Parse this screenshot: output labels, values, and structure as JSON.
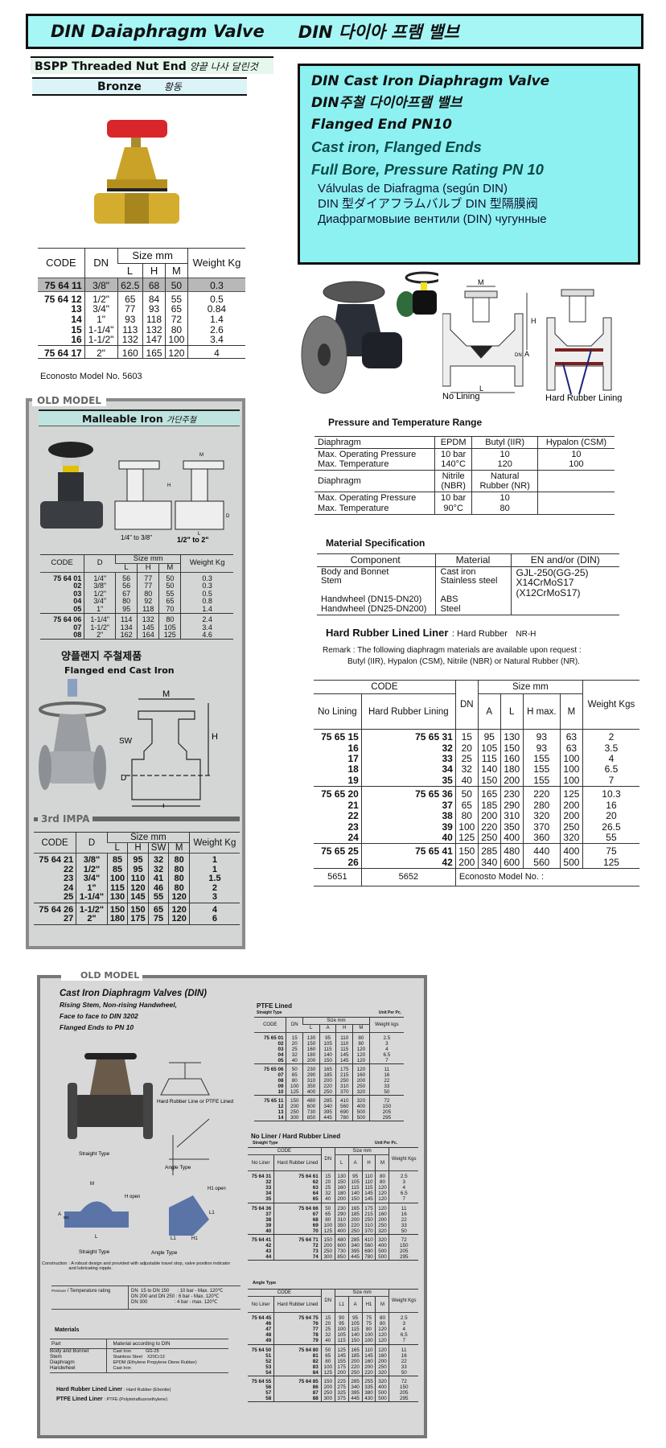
{
  "header": {
    "title_en": "DIN Daiaphragm Valve",
    "title_ko": "DIN 다이아 프램 밸브"
  },
  "bronze": {
    "end_type": "BSPP Threaded Nut End",
    "end_type_ko": "양끝 나사 달린것",
    "material": "Bronze",
    "material_ko": "황동",
    "headers": {
      "code": "CODE",
      "dn": "DN",
      "size": "Size mm",
      "l": "L",
      "h": "H",
      "m": "M",
      "weight": "Weight Kg"
    },
    "groups": [
      [
        [
          "75 64 11",
          "3/8\"",
          "62.5",
          "68",
          "50",
          "0.3"
        ]
      ],
      [
        [
          "75 64 12",
          "1/2\"",
          "65",
          "84",
          "55",
          "0.5"
        ],
        [
          "13",
          "3/4\"",
          "77",
          "93",
          "65",
          "0.84"
        ],
        [
          "14",
          "1\"",
          "93",
          "118",
          "72",
          "1.4"
        ],
        [
          "15",
          "1-1/4\"",
          "113",
          "132",
          "80",
          "2.6"
        ],
        [
          "16",
          "1-1/2\"",
          "132",
          "147",
          "100",
          "3.4"
        ]
      ],
      [
        [
          "75 64 17",
          "2\"",
          "160",
          "165",
          "120",
          "4"
        ]
      ]
    ],
    "model_no": "Econosto Model No. 5603"
  },
  "cast_iron": {
    "title_lines": [
      "DIN Cast Iron Diaphragm Valve",
      "DIN주철 다이아프램 밸브",
      "Flanged End PN10"
    ],
    "subtitle_lines": [
      "Cast iron, Flanged Ends",
      "Full Bore, Pressure Rating PN 10"
    ],
    "lang_lines": [
      "Válvulas de Diafragma (según DIN)",
      "DIN 型ダイアフラムバルブ   DIN 型隔膜阀",
      "Диафрагмовыие вентили (DIN) чугунные"
    ],
    "diagram_labels": {
      "m": "M",
      "h": "H",
      "dn": "DN",
      "a": "A",
      "l": "L",
      "no_lining": "No Lining",
      "hard_rubber": "Hard Rubber Lining"
    },
    "pressure": {
      "title": "Pressure and Temperature Range",
      "rows": [
        [
          "Diaphragm",
          "EPDM",
          "Butyl (IIR)",
          "Hypalon (CSM)"
        ],
        [
          "Max. Operating Pressure\nMax. Temperature",
          "10 bar\n140°C",
          "10\n120",
          "10\n100"
        ],
        [
          "Diaphragm",
          "Nitrile\n(NBR)",
          "Natural\nRubber (NR)",
          ""
        ],
        [
          "Max. Operating Pressure\nMax. Temperature",
          "10 bar\n90°C",
          "10\n80",
          ""
        ]
      ]
    },
    "material": {
      "title": "Material Specification",
      "headers": [
        "Component",
        "Material",
        "EN and/or (DIN)"
      ],
      "component": "Body and Bonnet\nStem\n\nHandwheel (DN15-DN20)\nHandwheel (DN25-DN200)",
      "materials": "Cast iron\nStainless steel\n\nABS\nSteel",
      "standards": "GJL-250(GG-25)\nX14CrMoS17\n(X12CrMoS17)"
    },
    "liner": {
      "label": "Hard Rubber Lined Liner",
      "value": ": Hard Rubber",
      "code": "NR-H"
    },
    "remark": "Remark : The following diaphragm materials are available upon request :",
    "remark2": "Butyl (IIR), Hypalon (CSM), Nitrile (NBR) or Natural Rubber (NR).",
    "table": {
      "headers": {
        "code": "CODE",
        "no_lining": "No Lining",
        "hard_rubber": "Hard Rubber Lining",
        "dn": "DN",
        "size": "Size mm",
        "a": "A",
        "l": "L",
        "h": "H max.",
        "m": "M",
        "weight": "Weight Kgs"
      },
      "groups": [
        [
          [
            "75 65 15",
            "75 65 31",
            "15",
            "95",
            "130",
            "93",
            "63",
            "2"
          ],
          [
            "16",
            "32",
            "20",
            "105",
            "150",
            "93",
            "63",
            "3.5"
          ],
          [
            "17",
            "33",
            "25",
            "115",
            "160",
            "155",
            "100",
            "4"
          ],
          [
            "18",
            "34",
            "32",
            "140",
            "180",
            "155",
            "100",
            "6.5"
          ],
          [
            "19",
            "35",
            "40",
            "150",
            "200",
            "155",
            "100",
            "7"
          ]
        ],
        [
          [
            "75 65 20",
            "75 65 36",
            "50",
            "165",
            "230",
            "220",
            "125",
            "10.3"
          ],
          [
            "21",
            "37",
            "65",
            "185",
            "290",
            "280",
            "200",
            "16"
          ],
          [
            "22",
            "38",
            "80",
            "200",
            "310",
            "320",
            "200",
            "20"
          ],
          [
            "23",
            "39",
            "100",
            "220",
            "350",
            "370",
            "250",
            "26.5"
          ],
          [
            "24",
            "40",
            "125",
            "250",
            "400",
            "360",
            "320",
            "55"
          ]
        ],
        [
          [
            "75 65 25",
            "75 65 41",
            "150",
            "285",
            "480",
            "440",
            "400",
            "75"
          ],
          [
            "26",
            "42",
            "200",
            "340",
            "600",
            "560",
            "500",
            "125"
          ]
        ]
      ],
      "footer": [
        "5651",
        "5652",
        "Econosto Model No. :"
      ]
    }
  },
  "old_model_1": {
    "label": "OLD MODEL",
    "malleable": {
      "title": "Malleable Iron",
      "title_ko": "가단주철",
      "cap_small": "1/4\" to 3/8\"",
      "cap_large": "1/2\" to 2\"",
      "dim_m": "M",
      "dim_h": "H",
      "dim_d": "D",
      "dim_l": "L",
      "headers": {
        "code": "CODE",
        "d": "D",
        "size": "Size mm",
        "l": "L",
        "h": "H",
        "m": "M",
        "weight": "Weight Kg"
      },
      "groups": [
        [
          [
            "75 64 01",
            "1/4\"",
            "56",
            "77",
            "50",
            "0.3"
          ],
          [
            "02",
            "3/8\"",
            "56",
            "77",
            "50",
            "0.3"
          ],
          [
            "03",
            "1/2\"",
            "67",
            "80",
            "55",
            "0.5"
          ],
          [
            "04",
            "3/4\"",
            "80",
            "92",
            "65",
            "0.8"
          ],
          [
            "05",
            "1\"",
            "95",
            "118",
            "70",
            "1.4"
          ]
        ],
        [
          [
            "75 64 06",
            "1-1/4\"",
            "114",
            "132",
            "80",
            "2.4"
          ],
          [
            "07",
            "1-1/2\"",
            "134",
            "145",
            "105",
            "3.4"
          ],
          [
            "08",
            "2\"",
            "162",
            "164",
            "125",
            "4.6"
          ]
        ]
      ]
    },
    "flanged": {
      "title_ko": "양플랜지 주철제품",
      "title": "Flanged end Cast Iron",
      "dim_m": "M",
      "dim_h": "H",
      "dim_sw": "SW",
      "dim_d": "D",
      "dim_l": "L",
      "impa": "3rd IMPA",
      "headers": {
        "code": "CODE",
        "d": "D",
        "size": "Size mm",
        "l": "L",
        "h": "H",
        "sw": "SW",
        "m": "M",
        "weight": "Weight Kg"
      },
      "groups": [
        [
          [
            "75 64 21",
            "3/8\"",
            "85",
            "95",
            "32",
            "80",
            "1"
          ],
          [
            "22",
            "1/2\"",
            "85",
            "95",
            "32",
            "80",
            "1"
          ],
          [
            "23",
            "3/4\"",
            "100",
            "110",
            "41",
            "80",
            "1.5"
          ],
          [
            "24",
            "1\"",
            "115",
            "120",
            "46",
            "80",
            "2"
          ],
          [
            "25",
            "1-1/4\"",
            "130",
            "145",
            "55",
            "120",
            "3"
          ]
        ],
        [
          [
            "75 64 26",
            "1-1/2\"",
            "150",
            "150",
            "65",
            "120",
            "4"
          ],
          [
            "27",
            "2\"",
            "180",
            "175",
            "75",
            "120",
            "6"
          ]
        ]
      ]
    }
  },
  "old_model_2": {
    "label": "OLD MODEL",
    "title": "Cast Iron Diaphragm Valves (DIN)",
    "sub": [
      "Rising Stem, Non-rising Handwheel,",
      "Face to face to DIN 3202",
      "Flanged Ends to PN 10"
    ],
    "captions": {
      "straight": "Straight Type",
      "lined": "Hard Rubber Line\nor PTFE Lined",
      "angle": "Angle Type",
      "h_open": "H\nopen",
      "h1_open": "H1\nopen",
      "m": "M",
      "a": "A",
      "dn": "DN",
      "l": "L",
      "l1": "L1",
      "h1": "H1"
    },
    "construction_label": "Construction",
    "construction": ": A robust design and provided with adjustable travel stop, valve position indicator and lubricating nipple.",
    "pressure_label": "Pressure",
    "pressure_label2": "/ Temperature rating",
    "pressure_values": "DN  15 to DN 150      : 10 bar - Max. 120℃\nDN 200 and DN 250 : 6 bar - Max. 120℃\nDN 300                    : 4 bar - max. 120℃",
    "materials_title": "Materials",
    "materials_headers": [
      "Part",
      "Material according to DIN"
    ],
    "materials_parts": "Body and Bonnet\nStem\nDiaphragm\nHandwheel",
    "materials_values": "Cast Iron            GG-25\nStainless Steel    X20Cr13\nEPDM (Ethylene Propylene Diene Rubber)\nCast Iron",
    "hr_label": "Hard Rubber Lined Liner",
    "hr_value": ": Hard Rubber (Ebonite)",
    "ptfe_label": "PTFE Lined Liner",
    "ptfe_value": ": PTFE (Polytetrafluoroethylene)",
    "ptfe_table": {
      "title": "PTFE Lined",
      "type": "Straight Type",
      "unit": "Unit Per Pc.",
      "headers": {
        "code": "CODE",
        "dn": "DN",
        "size": "Size mm",
        "l": "L",
        "a": "A",
        "h": "H",
        "m": "M",
        "weight": "Weight kgs"
      },
      "groups": [
        [
          [
            "75 65 01",
            "15",
            "130",
            "95",
            "110",
            "80",
            "2.5"
          ],
          [
            "02",
            "20",
            "150",
            "105",
            "110",
            "80",
            "3"
          ],
          [
            "03",
            "25",
            "160",
            "115",
            "115",
            "120",
            "4"
          ],
          [
            "04",
            "32",
            "180",
            "140",
            "145",
            "120",
            "6.5"
          ],
          [
            "05",
            "40",
            "200",
            "150",
            "145",
            "120",
            "7"
          ]
        ],
        [
          [
            "75 65 06",
            "50",
            "230",
            "165",
            "175",
            "120",
            "11"
          ],
          [
            "07",
            "65",
            "290",
            "185",
            "215",
            "160",
            "16"
          ],
          [
            "08",
            "80",
            "310",
            "200",
            "250",
            "200",
            "22"
          ],
          [
            "09",
            "100",
            "350",
            "220",
            "310",
            "250",
            "33"
          ],
          [
            "10",
            "125",
            "400",
            "250",
            "370",
            "320",
            "50"
          ]
        ],
        [
          [
            "75 65 11",
            "150",
            "480",
            "285",
            "410",
            "320",
            "72"
          ],
          [
            "12",
            "200",
            "600",
            "340",
            "560",
            "400",
            "150"
          ],
          [
            "13",
            "250",
            "730",
            "395",
            "690",
            "500",
            "205"
          ],
          [
            "14",
            "300",
            "850",
            "445",
            "780",
            "500",
            "295"
          ]
        ]
      ]
    },
    "noliner_table": {
      "title": "No Liner / Hard Rubber Lined",
      "type": "Straight Type",
      "unit": "Unit Per Pc.",
      "headers": {
        "code": "CODE",
        "no_liner": "No Liner",
        "hr": "Hard Rubber Lined",
        "dn": "DN",
        "size": "Size mm",
        "l": "L",
        "a": "A",
        "h": "H",
        "m": "M",
        "weight": "Weight Kgs"
      },
      "groups": [
        [
          [
            "75 64 31",
            "75 64 61",
            "15",
            "130",
            "95",
            "110",
            "80",
            "2.5"
          ],
          [
            "32",
            "62",
            "20",
            "150",
            "105",
            "110",
            "80",
            "3"
          ],
          [
            "33",
            "63",
            "25",
            "160",
            "115",
            "115",
            "120",
            "4"
          ],
          [
            "34",
            "64",
            "32",
            "180",
            "140",
            "145",
            "120",
            "6.5"
          ],
          [
            "35",
            "65",
            "40",
            "200",
            "150",
            "145",
            "120",
            "7"
          ]
        ],
        [
          [
            "75 64 36",
            "75 64 66",
            "50",
            "230",
            "165",
            "175",
            "120",
            "11"
          ],
          [
            "37",
            "67",
            "65",
            "290",
            "185",
            "215",
            "160",
            "16"
          ],
          [
            "38",
            "68",
            "80",
            "310",
            "200",
            "250",
            "200",
            "22"
          ],
          [
            "39",
            "69",
            "100",
            "350",
            "220",
            "310",
            "250",
            "33"
          ],
          [
            "40",
            "70",
            "125",
            "400",
            "250",
            "370",
            "320",
            "50"
          ]
        ],
        [
          [
            "75 64 41",
            "75 64 71",
            "150",
            "480",
            "285",
            "410",
            "320",
            "72"
          ],
          [
            "42",
            "72",
            "200",
            "600",
            "340",
            "560",
            "400",
            "150"
          ],
          [
            "43",
            "73",
            "250",
            "730",
            "395",
            "690",
            "500",
            "205"
          ],
          [
            "44",
            "74",
            "300",
            "850",
            "445",
            "780",
            "500",
            "295"
          ]
        ]
      ]
    },
    "angle_table": {
      "type": "Angle Type",
      "headers": {
        "code": "CODE",
        "no_liner": "No Liner",
        "hr": "Hard Rubber Lined",
        "dn": "DN",
        "size": "Size mm",
        "l": "L1",
        "a": "A",
        "h": "H1",
        "m": "M",
        "weight": "Weight Kgs"
      },
      "groups": [
        [
          [
            "75 64 45",
            "75 64 75",
            "15",
            "90",
            "95",
            "75",
            "80",
            "2.5"
          ],
          [
            "46",
            "76",
            "20",
            "95",
            "105",
            "75",
            "80",
            "3"
          ],
          [
            "47",
            "77",
            "25",
            "100",
            "115",
            "80",
            "120",
            "4"
          ],
          [
            "48",
            "78",
            "32",
            "105",
            "140",
            "100",
            "120",
            "6.5"
          ],
          [
            "49",
            "79",
            "40",
            "115",
            "150",
            "100",
            "120",
            "7"
          ]
        ],
        [
          [
            "75 64 50",
            "75 64 80",
            "50",
            "125",
            "165",
            "110",
            "120",
            "11"
          ],
          [
            "51",
            "81",
            "65",
            "145",
            "185",
            "145",
            "160",
            "16"
          ],
          [
            "52",
            "82",
            "80",
            "155",
            "200",
            "160",
            "200",
            "22"
          ],
          [
            "53",
            "83",
            "100",
            "175",
            "220",
            "200",
            "250",
            "33"
          ],
          [
            "54",
            "84",
            "125",
            "200",
            "250",
            "220",
            "320",
            "50"
          ]
        ],
        [
          [
            "75 64 55",
            "75 64 85",
            "150",
            "225",
            "285",
            "255",
            "320",
            "72"
          ],
          [
            "56",
            "86",
            "200",
            "275",
            "340",
            "335",
            "400",
            "150"
          ],
          [
            "57",
            "87",
            "250",
            "325",
            "395",
            "380",
            "500",
            "205"
          ],
          [
            "58",
            "88",
            "300",
            "375",
            "445",
            "430",
            "500",
            "295"
          ]
        ]
      ]
    }
  },
  "colors": {
    "header_bg": "#a6f6f6",
    "cast_box_bg": "#8ef1f1",
    "old_bg": "#d4d6d6",
    "handwheel_red": "#d8262a",
    "bronze": "#c9a227"
  }
}
